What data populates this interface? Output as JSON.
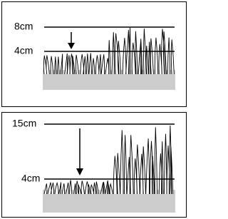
{
  "panels": [
    {
      "labels": [
        "8cm",
        "4cm"
      ]
    },
    {
      "labels": [
        "15cm",
        "4cm"
      ]
    }
  ]
}
